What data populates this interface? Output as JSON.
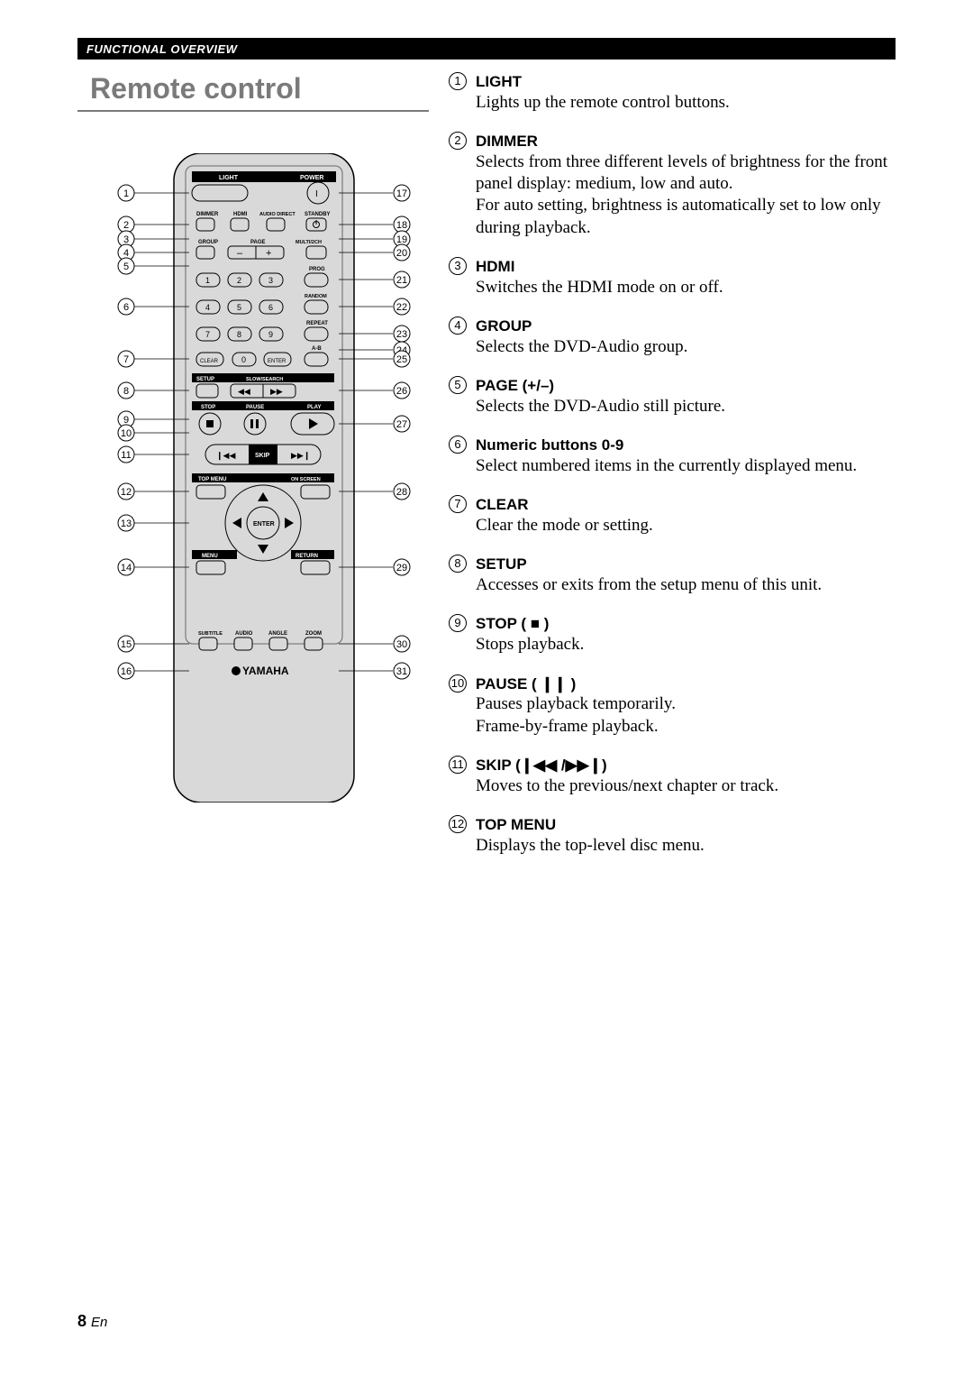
{
  "header": "FUNCTIONAL OVERVIEW",
  "title": "Remote control",
  "page_number": "8",
  "page_lang": "En",
  "remote": {
    "bg_color": "#d9d9d9",
    "outline_color": "#000000",
    "brand": "YAMAHA",
    "left_callouts": [
      "1",
      "2",
      "3",
      "4",
      "5",
      "6",
      "7",
      "8",
      "9",
      "10",
      "11",
      "12",
      "13",
      "14",
      "15",
      "16"
    ],
    "right_callouts": [
      "17",
      "18",
      "19",
      "20",
      "21",
      "22",
      "23",
      "24",
      "25",
      "26",
      "27",
      "28",
      "29",
      "30",
      "31"
    ],
    "labels": {
      "light": "LIGHT",
      "power": "POWER",
      "dimmer": "DIMMER",
      "hdmi": "HDMI",
      "audiodirect": "AUDIO DIRECT",
      "standby": "STANDBY",
      "group": "GROUP",
      "page": "PAGE",
      "multi2ch": "MULTI/2CH",
      "prog": "PROG",
      "random": "RANDOM",
      "repeat": "REPEAT",
      "ab": "A-B",
      "clear": "CLEAR",
      "enter_sm": "ENTER",
      "setup": "SETUP",
      "slowsearch": "SLOW/SEARCH",
      "stop": "STOP",
      "pause": "PAUSE",
      "play": "PLAY",
      "skip": "SKIP",
      "topmenu": "TOP MENU",
      "onscreen": "ON SCREEN",
      "enter": "ENTER",
      "menu": "MENU",
      "return": "RETURN",
      "subtitle": "SUBTITLE",
      "audio": "AUDIO",
      "angle": "ANGLE",
      "zoom": "ZOOM",
      "minus": "–",
      "plus": "+"
    }
  },
  "descriptions": [
    {
      "num": "1",
      "title": "LIGHT",
      "text": "Lights up the remote control buttons."
    },
    {
      "num": "2",
      "title": "DIMMER",
      "text": "Selects from three different levels of brightness for the front panel display: medium, low and auto.\nFor auto setting, brightness is automatically set to low only during playback."
    },
    {
      "num": "3",
      "title": "HDMI",
      "text": "Switches the HDMI mode on or off."
    },
    {
      "num": "4",
      "title": "GROUP",
      "text": "Selects the DVD-Audio group."
    },
    {
      "num": "5",
      "title": "PAGE (+/–)",
      "text": "Selects the DVD-Audio still picture."
    },
    {
      "num": "6",
      "title": "Numeric buttons 0-9",
      "text": "Select numbered items in the currently displayed menu."
    },
    {
      "num": "7",
      "title": "CLEAR",
      "text": "Clear the mode or setting."
    },
    {
      "num": "8",
      "title": "SETUP",
      "text": "Accesses or exits from the setup menu of this unit."
    },
    {
      "num": "9",
      "title": "STOP ( ■ )",
      "text": "Stops playback."
    },
    {
      "num": "10",
      "title": "PAUSE ( ❙❙ )",
      "text": "Pauses playback temporarily.\nFrame-by-frame playback."
    },
    {
      "num": "11",
      "title": "SKIP (❙◀◀ /▶▶❙)",
      "text": "Moves to the previous/next chapter or track."
    },
    {
      "num": "12",
      "title": "TOP MENU",
      "text": "Displays the top-level disc menu."
    }
  ]
}
